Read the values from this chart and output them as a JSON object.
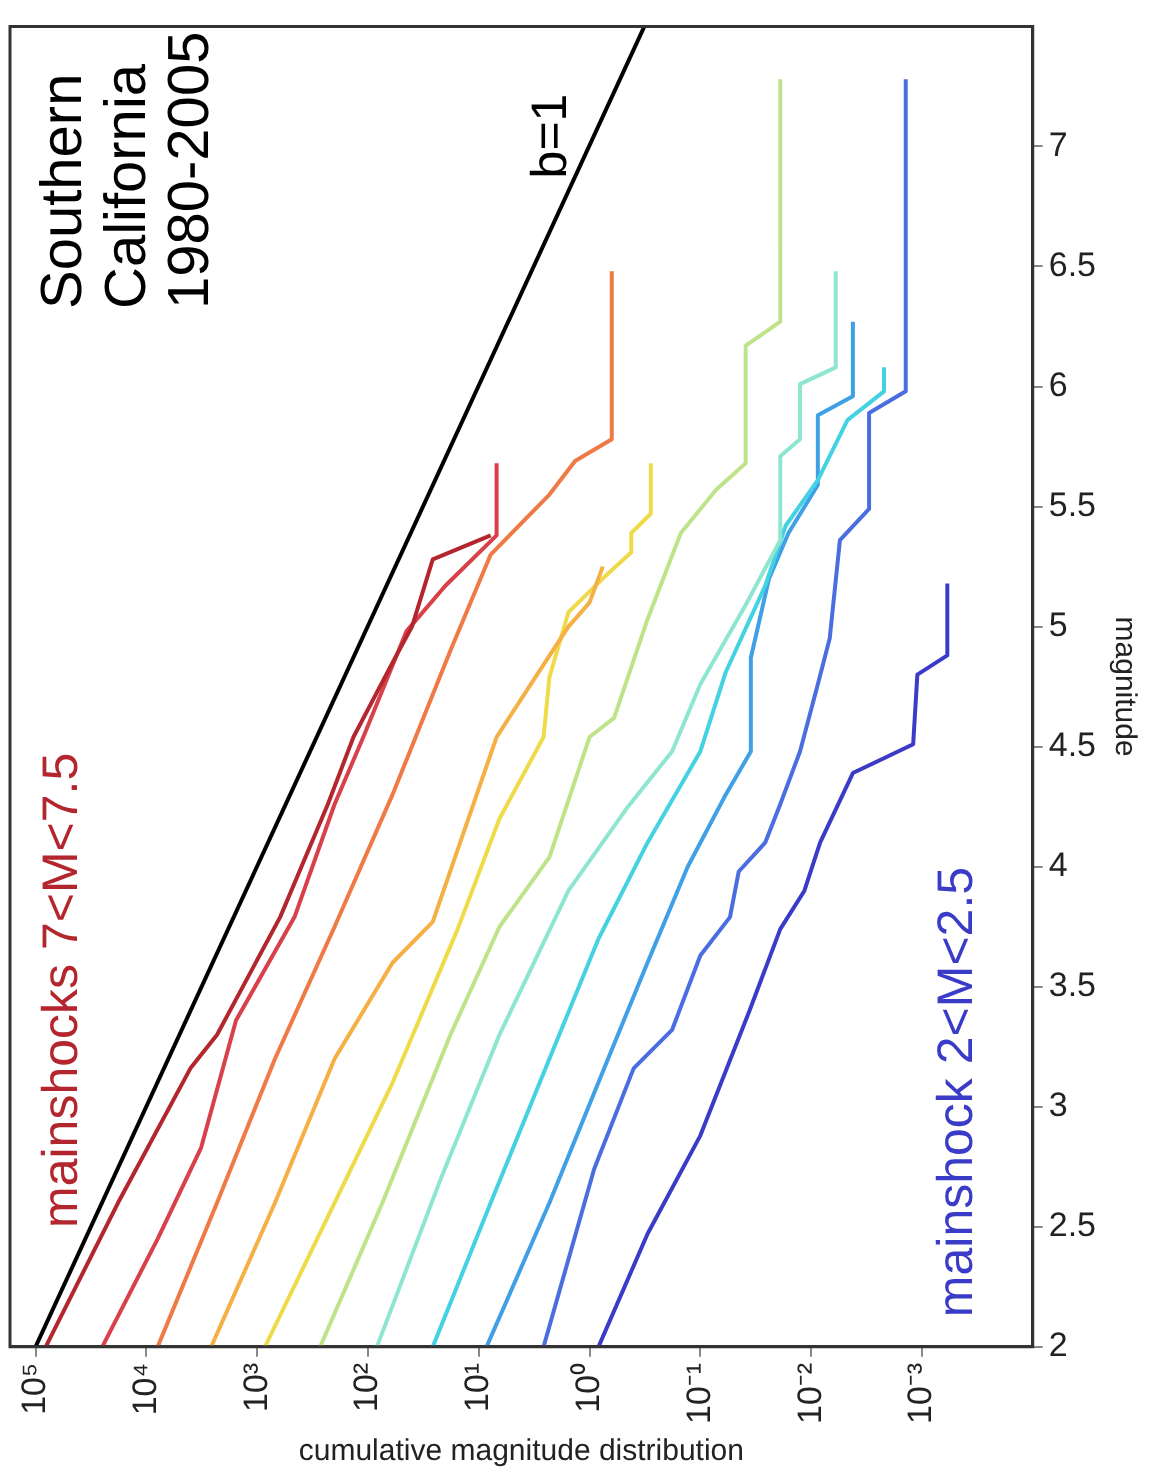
{
  "chart_data": {
    "type": "line",
    "xlabel": "cumulative magnitude distribution",
    "ylabel": "magnitude",
    "log": "x",
    "grid": false,
    "legend": false,
    "marker": "none",
    "line_style": "solid",
    "ylim": [
      2,
      7.5
    ],
    "yticks": [
      2,
      2.5,
      3,
      3.5,
      4,
      4.5,
      5,
      5.5,
      6,
      6.5,
      7
    ],
    "xlim": [
      170000,
      0.0001
    ],
    "xticks": [
      {
        "value": 0.001,
        "label": "10⁻³"
      },
      {
        "value": 0.01,
        "label": "10⁻²"
      },
      {
        "value": 0.1,
        "label": "10⁻¹"
      },
      {
        "value": 1,
        "label": "10⁰"
      },
      {
        "value": 10,
        "label": "10¹"
      },
      {
        "value": 100,
        "label": "10²"
      },
      {
        "value": 1000,
        "label": "10³"
      },
      {
        "value": 10000,
        "label": "10⁴"
      },
      {
        "value": 100000,
        "label": "10⁵"
      }
    ],
    "annotations": [
      "Southern California 1980-2005"
    ],
    "series": [
      {
        "name": "mainshocks 7<M<7.5",
        "color": "#b3262e",
        "values": [
          2,
          2.6,
          3.16,
          3.3,
          3.79,
          4.26,
          4.54,
          4.85,
          5.0,
          5.28,
          5.38
        ],
        "x": [
          81000,
          18000,
          4000,
          2300,
          620,
          230,
          135,
          60,
          40,
          26,
          7.8
        ]
      },
      {
        "color": "#d8404a",
        "values": [
          2,
          2.45,
          2.83,
          3.36,
          3.79,
          4.26,
          4.54,
          4.98,
          5.17,
          5.38,
          5.68
        ],
        "x": [
          25000,
          7900,
          3200,
          1550,
          460,
          200,
          110,
          45,
          20,
          6.9,
          6.9
        ]
      },
      {
        "color": "#ee7a45",
        "values": [
          2,
          2.6,
          3.2,
          3.75,
          4.3,
          4.9,
          5.3,
          5.55,
          5.69,
          5.78,
          6.48
        ],
        "x": [
          7900,
          2300,
          690,
          200,
          60,
          18,
          7.8,
          2.3,
          1.35,
          0.63,
          0.63
        ]
      },
      {
        "color": "#f5b045",
        "values": [
          2,
          2.6,
          3.2,
          3.6,
          3.77,
          4.54,
          4.75,
          5.0,
          5.1,
          5.25
        ],
        "x": [
          2600,
          690,
          200,
          60,
          26,
          6.9,
          3.5,
          1.55,
          1.0,
          0.76
        ]
      },
      {
        "color": "#efdb4a",
        "values": [
          2,
          2.6,
          3.1,
          3.74,
          4.2,
          4.54,
          4.79,
          5.06,
          5.2,
          5.31,
          5.39,
          5.47,
          5.68
        ],
        "x": [
          850,
          200,
          60,
          15.5,
          6.5,
          2.6,
          2.3,
          1.55,
          0.76,
          0.42,
          0.42,
          0.28,
          0.28
        ]
      },
      {
        "color": "#bfe38a",
        "values": [
          2,
          2.6,
          3.3,
          3.75,
          4.04,
          4.54,
          4.62,
          5.03,
          5.39,
          5.57,
          5.68,
          6.17,
          6.27,
          7.28
        ],
        "x": [
          270,
          74,
          18,
          6.5,
          2.3,
          1.0,
          0.6,
          0.3,
          0.15,
          0.072,
          0.039,
          0.039,
          0.019,
          0.019
        ]
      },
      {
        "color": "#8ee6d0",
        "values": [
          2,
          2.7,
          3.3,
          3.9,
          4.25,
          4.48,
          4.76,
          5.09,
          5.36,
          5.71,
          5.78,
          6.01,
          6.08,
          6.48
        ],
        "x": [
          83,
          22,
          6.5,
          1.55,
          0.45,
          0.18,
          0.1,
          0.039,
          0.019,
          0.019,
          0.0126,
          0.0126,
          0.006,
          0.006
        ]
      },
      {
        "color": "#44d2e2",
        "values": [
          2,
          2.6,
          3.2,
          3.7,
          4.1,
          4.48,
          4.81,
          5.17,
          5.42,
          5.61,
          5.86,
          5.98,
          6.08
        ],
        "x": [
          26,
          7.8,
          2.3,
          0.83,
          0.3,
          0.1,
          0.059,
          0.026,
          0.017,
          0.0087,
          0.0047,
          0.0022,
          0.0022
        ]
      },
      {
        "color": "#3fa0e6",
        "values": [
          2,
          2.6,
          3.2,
          3.6,
          4.0,
          4.3,
          4.48,
          4.87,
          5.2,
          5.39,
          5.59,
          5.88,
          5.96,
          6.27
        ],
        "x": [
          8.5,
          2.3,
          0.68,
          0.3,
          0.13,
          0.059,
          0.035,
          0.035,
          0.024,
          0.016,
          0.0087,
          0.0087,
          0.0042,
          0.0042
        ]
      },
      {
        "color": "#4a6ee0",
        "values": [
          2,
          2.74,
          3.16,
          3.32,
          3.63,
          3.79,
          3.98,
          4.1,
          4.26,
          4.48,
          4.76,
          4.95,
          5.36,
          5.49,
          5.89,
          5.98,
          7.28
        ],
        "x": [
          2.6,
          0.91,
          0.4,
          0.18,
          0.1,
          0.054,
          0.045,
          0.026,
          0.019,
          0.0126,
          0.0087,
          0.0068,
          0.0055,
          0.003,
          0.003,
          0.0014,
          0.0014
        ]
      },
      {
        "name": "mainshock 2<M<2.5",
        "color": "#3a3cc8",
        "values": [
          2,
          2.47,
          2.88,
          3.4,
          3.74,
          3.9,
          4.1,
          4.39,
          4.51,
          4.8,
          4.88,
          5.18
        ],
        "x": [
          0.83,
          0.3,
          0.1,
          0.036,
          0.019,
          0.0115,
          0.0083,
          0.0042,
          0.0012,
          0.0011,
          0.00059,
          0.00059
        ]
      },
      {
        "name": "b=1",
        "color": "#000000",
        "values": [
          2,
          7.5
        ],
        "x": [
          100000,
          0.32
        ]
      }
    ]
  }
}
